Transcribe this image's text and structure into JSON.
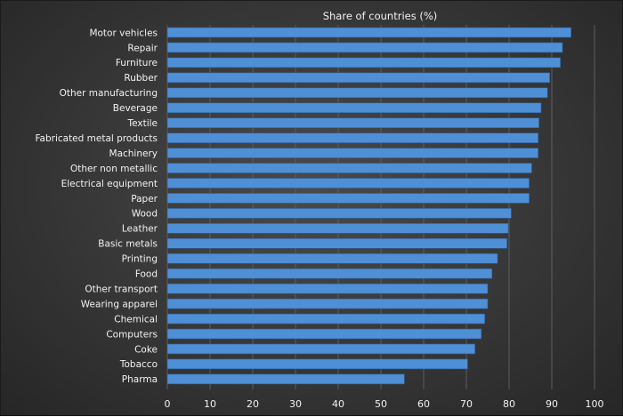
{
  "chart_data": {
    "type": "bar",
    "orientation": "horizontal",
    "title": "Share of countries (%)",
    "xlabel": "",
    "ylabel": "",
    "xlim": [
      0,
      100
    ],
    "x_ticks": [
      0,
      10,
      20,
      30,
      40,
      50,
      60,
      70,
      80,
      90,
      100
    ],
    "grid": "vertical",
    "legend": "none",
    "bar_color": "#4f8fd6",
    "categories": [
      "Motor vehicles",
      "Repair",
      "Furniture",
      "Rubber",
      "Other manufacturing",
      "Beverage",
      "Textile",
      "Fabricated metal products",
      "Machinery",
      "Other non metallic",
      "Electrical equipment",
      "Paper",
      "Wood",
      "Leather",
      "Basic metals",
      "Printing",
      "Food",
      "Other transport",
      "Wearing apparel",
      "Chemical",
      "Computers",
      "Coke",
      "Tobacco",
      "Pharma"
    ],
    "values": [
      94.5,
      92.5,
      92,
      89.5,
      89,
      87.5,
      87,
      86.8,
      86.8,
      85.3,
      84.7,
      84.7,
      80.5,
      79.8,
      79.5,
      77.3,
      76,
      75,
      75,
      74.3,
      73.5,
      72,
      70.3,
      55.5
    ]
  }
}
